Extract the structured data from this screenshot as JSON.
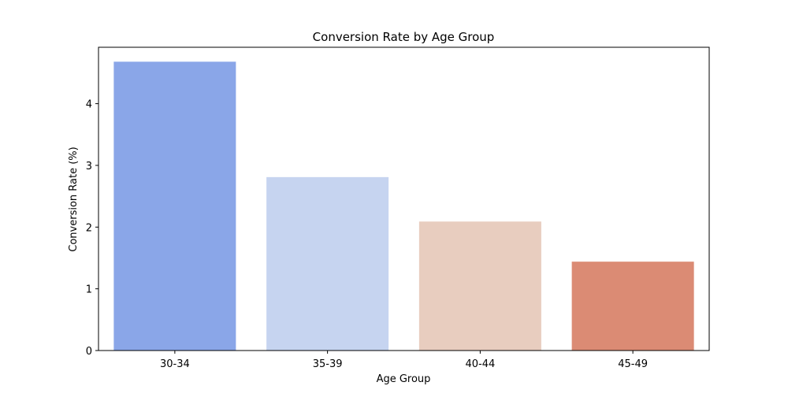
{
  "chart_data": {
    "type": "bar",
    "title": "Conversion Rate by Age Group",
    "xlabel": "Age Group",
    "ylabel": "Conversion Rate (%)",
    "categories": [
      "30-34",
      "35-39",
      "40-44",
      "45-49"
    ],
    "values": [
      4.68,
      2.81,
      2.09,
      1.44
    ],
    "colors": [
      "#8aa6e8",
      "#c6d4f0",
      "#e8cdbf",
      "#db8b74"
    ],
    "yticks": [
      0,
      1,
      2,
      3,
      4
    ],
    "ylim": [
      0,
      4.914
    ],
    "grid": false,
    "legend": "none"
  }
}
